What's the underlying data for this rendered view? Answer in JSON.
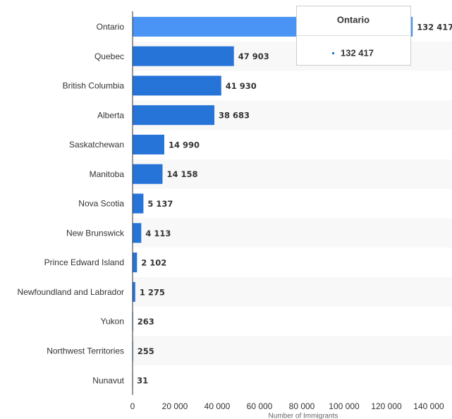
{
  "chart_data": {
    "type": "bar",
    "orientation": "horizontal",
    "x_label": "Number of Immigrants",
    "categories": [
      "Ontario",
      "Quebec",
      "British Columbia",
      "Alberta",
      "Saskatchewan",
      "Manitoba",
      "Nova Scotia",
      "New Brunswick",
      "Prince Edward Island",
      "Newfoundland and Labrador",
      "Yukon",
      "Northwest Territories",
      "Nunavut"
    ],
    "values": [
      132417,
      47903,
      41930,
      38683,
      14990,
      14158,
      5137,
      4113,
      2102,
      1275,
      263,
      255,
      31
    ],
    "value_labels": [
      "132 417",
      "47 903",
      "41 930",
      "38 683",
      "14 990",
      "14 158",
      "5 137",
      "4 113",
      "2 102",
      "1 275",
      "263",
      "255",
      "31"
    ],
    "color": "#2774d9",
    "highlight": {
      "index": 0,
      "color": "#4a94f5"
    },
    "xlim": [
      0,
      151000
    ],
    "xticks": [
      0,
      {
        "value": 20000,
        "label": "20 000"
      },
      {
        "value": 40000,
        "label": "40 000"
      },
      {
        "value": 60000,
        "label": "60 000"
      },
      {
        "value": 80000,
        "label": "80 000"
      },
      {
        "value": 100000,
        "label": "100 000"
      },
      {
        "value": 120000,
        "label": "120 000"
      },
      {
        "value": 140000,
        "label": "140 000"
      }
    ],
    "row_stripes": true
  }
}
